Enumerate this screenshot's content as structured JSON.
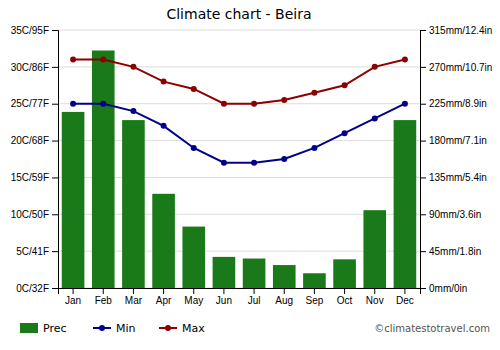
{
  "chart_data": {
    "type": "bar",
    "title": "Climate chart - Beira",
    "categories": [
      "Jan",
      "Feb",
      "Mar",
      "Apr",
      "May",
      "Jun",
      "Jul",
      "Aug",
      "Sep",
      "Oct",
      "Nov",
      "Dec"
    ],
    "series": [
      {
        "name": "Prec",
        "type": "bar",
        "axis": "y2",
        "color": "#1a7a1a",
        "values": [
          215,
          290,
          205,
          115,
          75,
          38,
          36,
          28,
          18,
          35,
          95,
          205
        ]
      },
      {
        "name": "Min",
        "type": "line",
        "color": "#00008B",
        "marker": "circle",
        "values": [
          25,
          25,
          24,
          22,
          19,
          17,
          17,
          17.5,
          19,
          21,
          23,
          25
        ]
      },
      {
        "name": "Max",
        "type": "line",
        "color": "#8B0000",
        "marker": "circle",
        "values": [
          31,
          31,
          30,
          28,
          27,
          25,
          25,
          25.5,
          26.5,
          27.5,
          30,
          31
        ]
      }
    ],
    "ylim": [
      0,
      35
    ],
    "yticks": [
      {
        "value": 0,
        "label": "0C/32F"
      },
      {
        "value": 5,
        "label": "5C/41F"
      },
      {
        "value": 10,
        "label": "10C/50F"
      },
      {
        "value": 15,
        "label": "15C/59F"
      },
      {
        "value": 20,
        "label": "20C/68F"
      },
      {
        "value": 25,
        "label": "25C/77F"
      },
      {
        "value": 30,
        "label": "30C/86F"
      },
      {
        "value": 35,
        "label": "35C/95F"
      }
    ],
    "y2lim": [
      0,
      315
    ],
    "y2ticks": [
      {
        "value": 0,
        "label": "0mm/0in"
      },
      {
        "value": 45,
        "label": "45mm/1.8in"
      },
      {
        "value": 90,
        "label": "90mm/3.6in"
      },
      {
        "value": 135,
        "label": "135mm/5.4in"
      },
      {
        "value": 180,
        "label": "180mm/7.1in"
      },
      {
        "value": 225,
        "label": "225mm/8.9in"
      },
      {
        "value": 270,
        "label": "270mm/10.7in"
      },
      {
        "value": 315,
        "label": "315mm/12.4in"
      }
    ],
    "grid": true,
    "legend": "bottom",
    "annotations": [
      "©climatestotravel.com"
    ]
  }
}
